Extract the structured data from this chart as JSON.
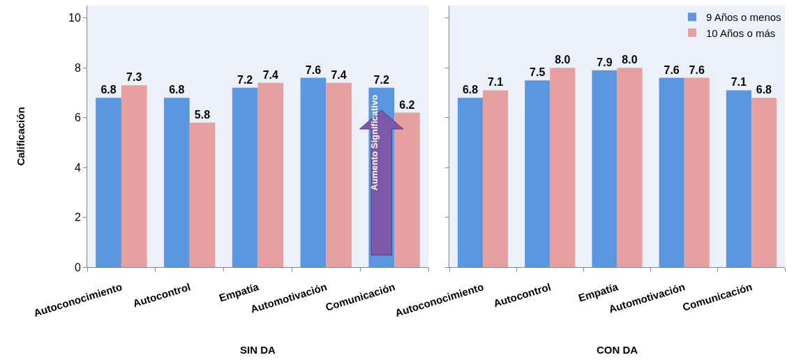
{
  "chart_data": [
    {
      "type": "bar",
      "xlabel": "SIN DA",
      "ylabel": "Calificación",
      "categories": [
        "Autoconocimiento",
        "Autocontrol",
        "Empatía",
        "Automotivación",
        "Comunicación"
      ],
      "series": [
        {
          "color": "#5b96e0",
          "values": [
            6.8,
            6.8,
            7.2,
            7.6,
            7.2
          ],
          "value_labels": [
            "6.8",
            "6.8",
            "7.2",
            "7.6",
            "7.2"
          ]
        },
        {
          "color": "#e6a0a0",
          "values": [
            7.3,
            5.8,
            7.4,
            7.4,
            6.2
          ],
          "value_labels": [
            "7.3",
            "5.8",
            "7.4",
            "7.4",
            "6.2"
          ]
        }
      ],
      "ylim": [
        0,
        10.5
      ],
      "yticks": [
        0,
        2,
        4,
        6,
        8,
        10
      ],
      "annotations": [
        "Aumento Significativo"
      ]
    },
    {
      "type": "bar",
      "xlabel": "CON DA",
      "categories": [
        "Autoconocimiento",
        "Autocontrol",
        "Empatía",
        "Automotivación",
        "Comunicación"
      ],
      "series": [
        {
          "name": "9 Años o menos",
          "color": "#5b96e0",
          "values": [
            6.8,
            7.5,
            7.9,
            7.6,
            7.1
          ],
          "value_labels": [
            "6.8",
            "7.5",
            "7.9",
            "7.6",
            "7.1"
          ]
        },
        {
          "name": "10 Años o más",
          "color": "#e6a0a0",
          "values": [
            7.1,
            8.0,
            8.0,
            7.6,
            6.8
          ],
          "value_labels": [
            "7.1",
            "8.0",
            "8.0",
            "7.6",
            "6.8"
          ]
        }
      ],
      "ylim": [
        0,
        10.5
      ],
      "yticks": [
        0,
        2,
        4,
        6,
        8,
        10
      ],
      "legend": "top right",
      "tick_labels": "x"
    }
  ]
}
